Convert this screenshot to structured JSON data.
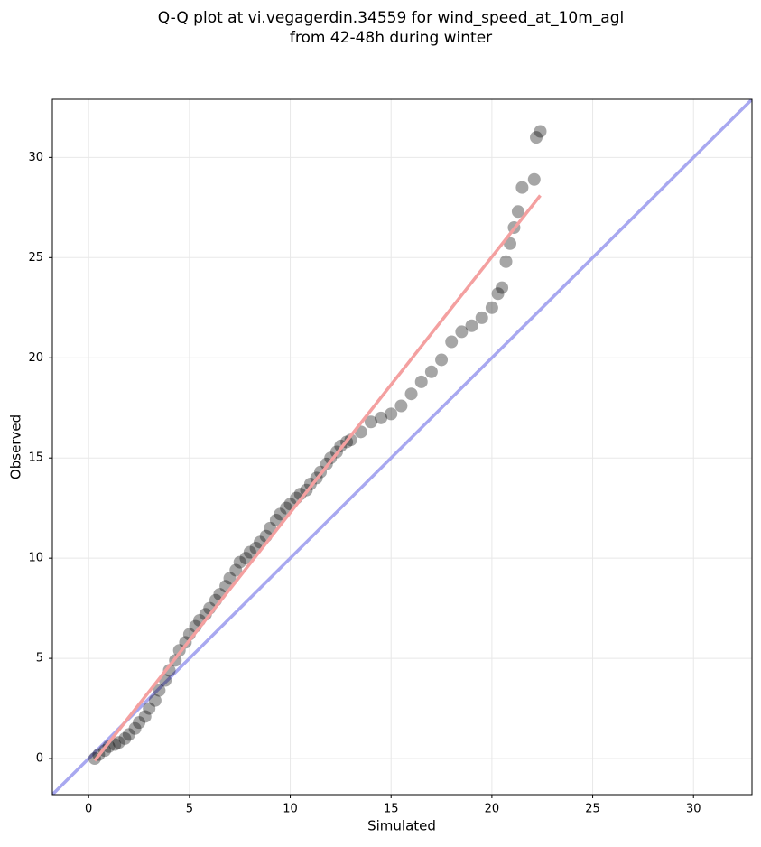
{
  "chart_data": {
    "type": "scatter",
    "title": [
      "Q-Q plot at vi.vegagerdin.34559 for wind_speed_at_10m_agl",
      "from 42-48h during winter"
    ],
    "x_label": "Simulated",
    "y_label": "Observed",
    "xlim": [
      -1.8,
      32.9
    ],
    "ylim": [
      -1.8,
      32.9
    ],
    "xticks": [
      0,
      5,
      10,
      15,
      20,
      25,
      30
    ],
    "yticks": [
      0,
      5,
      10,
      15,
      20,
      25,
      30
    ],
    "grid": true,
    "color": "#000000",
    "x": [
      0.3,
      0.5,
      0.8,
      1,
      1.3,
      1.5,
      1.8,
      2,
      2.3,
      2.5,
      2.8,
      3,
      3.3,
      3.5,
      3.8,
      4,
      4.3,
      4.5,
      4.8,
      5,
      5.3,
      5.5,
      5.8,
      6,
      6.3,
      6.5,
      6.8,
      7,
      7.3,
      7.5,
      7.8,
      8,
      8.3,
      8.5,
      8.8,
      9,
      9.3,
      9.5,
      9.8,
      10,
      10.3,
      10.5,
      10.8,
      11,
      11.3,
      11.5,
      11.8,
      12,
      12.3,
      12.5,
      12.8,
      13,
      13.5,
      14,
      14.5,
      15,
      15.5,
      16,
      16.5,
      17,
      17.5,
      18,
      18.5,
      19,
      19.5,
      20,
      20.3,
      20.5,
      20.7,
      20.9,
      21.1,
      21.3,
      21.5,
      22.1,
      22.2,
      22.4
    ],
    "values": [
      0,
      0.2,
      0.4,
      0.6,
      0.7,
      0.8,
      1.0,
      1.2,
      1.5,
      1.8,
      2.1,
      2.5,
      2.9,
      3.4,
      3.9,
      4.4,
      4.9,
      5.4,
      5.8,
      6.2,
      6.6,
      6.9,
      7.2,
      7.5,
      7.9,
      8.2,
      8.6,
      9.0,
      9.4,
      9.8,
      10.0,
      10.3,
      10.5,
      10.8,
      11.1,
      11.5,
      11.9,
      12.2,
      12.5,
      12.7,
      13.0,
      13.2,
      13.4,
      13.7,
      14.0,
      14.3,
      14.7,
      15.0,
      15.3,
      15.6,
      15.8,
      15.9,
      16.3,
      16.8,
      17.0,
      17.2,
      17.6,
      18.2,
      18.8,
      19.3,
      19.9,
      20.8,
      21.3,
      21.6,
      22.0,
      22.5,
      23.2,
      23.5,
      24.8,
      25.7,
      26.5,
      27.3,
      28.5,
      28.9,
      31.0,
      31.3
    ],
    "fit_line": {
      "color": "#f4a0a0",
      "x": [
        0.3,
        22.4
      ],
      "values": [
        -0.1,
        28.1
      ]
    },
    "reference_line": {
      "color": "#a8a8f0",
      "x": [
        -1.8,
        32.9
      ],
      "values": [
        -1.8,
        32.9
      ]
    }
  }
}
